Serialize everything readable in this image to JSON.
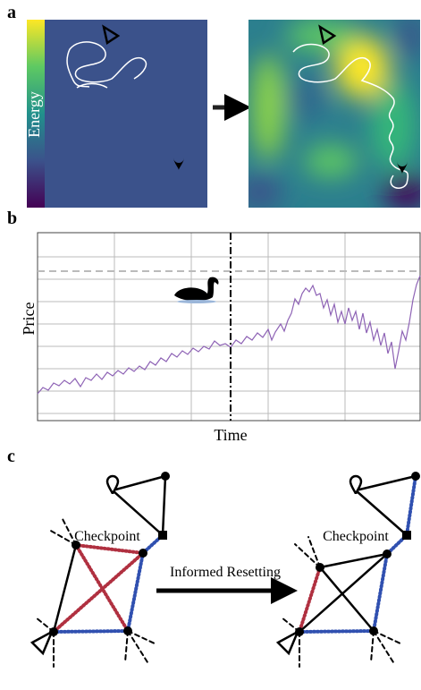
{
  "panels": {
    "a": {
      "label": "a",
      "colorbar_label": "Energy"
    },
    "b": {
      "label": "b",
      "y_label": "Price",
      "x_label": "Time"
    },
    "c": {
      "label": "c",
      "checkpoint_left": "Checkpoint",
      "checkpoint_right": "Checkpoint",
      "arrow_label": "Informed Resetting"
    }
  }
}
